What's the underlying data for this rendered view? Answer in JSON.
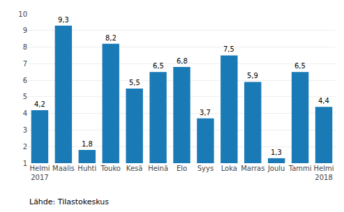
{
  "chart_data": {
    "type": "bar",
    "categories": [
      "Helmi\n2017",
      "Maalis",
      "Huhti",
      "Touko",
      "Kesä",
      "Heinä",
      "Elo",
      "Syys",
      "Loka",
      "Marras",
      "Joulu",
      "Tammi",
      "Helmi\n2018"
    ],
    "values": [
      4.2,
      9.3,
      1.8,
      8.2,
      5.5,
      6.5,
      6.8,
      3.7,
      7.5,
      5.9,
      1.3,
      6.5,
      4.4
    ],
    "value_labels": [
      "4,2",
      "9,3",
      "1,8",
      "8,2",
      "5,5",
      "6,5",
      "6,8",
      "3,7",
      "7,5",
      "5,9",
      "1,3",
      "6,5",
      "4,4"
    ],
    "data_labels": true,
    "color": "#1a7ab5",
    "ylim": [
      1,
      10
    ],
    "yticks": [
      1,
      2,
      3,
      4,
      5,
      6,
      7,
      8,
      9,
      10
    ],
    "grid": true,
    "annotations": [
      "Lähde: Tilastokeskus"
    ]
  }
}
